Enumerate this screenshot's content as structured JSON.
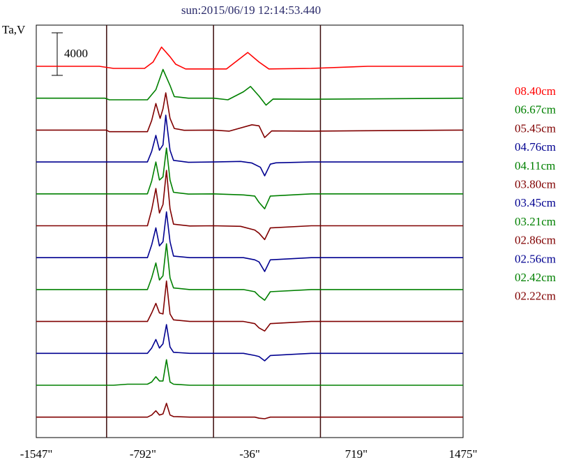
{
  "chart_data": {
    "type": "line",
    "title": "sun:2015/06/19 12:14:53.440",
    "ylabel": "Ta,V",
    "xlabel": "",
    "xlim": [
      -1547,
      1475
    ],
    "x_ticks": [
      {
        "value": -1547,
        "label": "-1547\""
      },
      {
        "value": -792,
        "label": "-792\""
      },
      {
        "value": -36,
        "label": "-36\""
      },
      {
        "value": 719,
        "label": "719\""
      },
      {
        "value": 1475,
        "label": "1475\""
      }
    ],
    "vertical_markers": [
      -1049,
      -292,
      465
    ],
    "scale_bar": {
      "label": "4000",
      "value": 4000
    },
    "grid": false,
    "legend_position": "right",
    "series": [
      {
        "name": "08.40cm",
        "color": "#ff0000",
        "baseline": 0,
        "values": [
          [
            -1547,
            0
          ],
          [
            -1100,
            0
          ],
          [
            -1000,
            -200
          ],
          [
            -780,
            -200
          ],
          [
            -720,
            400
          ],
          [
            -660,
            1800
          ],
          [
            -600,
            900
          ],
          [
            -560,
            200
          ],
          [
            -490,
            -250
          ],
          [
            -400,
            -250
          ],
          [
            -300,
            -250
          ],
          [
            -200,
            -250
          ],
          [
            -50,
            1300
          ],
          [
            30,
            400
          ],
          [
            100,
            -250
          ],
          [
            400,
            -200
          ],
          [
            800,
            0
          ],
          [
            1475,
            0
          ]
        ]
      },
      {
        "name": "06.67cm",
        "color": "#008000",
        "baseline": 0,
        "values": [
          [
            -1547,
            0
          ],
          [
            -1060,
            0
          ],
          [
            -1030,
            -150
          ],
          [
            -760,
            -150
          ],
          [
            -700,
            800
          ],
          [
            -650,
            2700
          ],
          [
            -600,
            1200
          ],
          [
            -570,
            150
          ],
          [
            -470,
            0
          ],
          [
            -290,
            0
          ],
          [
            -190,
            -150
          ],
          [
            -80,
            600
          ],
          [
            -30,
            1100
          ],
          [
            30,
            200
          ],
          [
            80,
            -650
          ],
          [
            130,
            -80
          ],
          [
            400,
            -100
          ],
          [
            1475,
            0
          ]
        ]
      },
      {
        "name": "05.45cm",
        "color": "#800000",
        "baseline": 0,
        "values": [
          [
            -1547,
            0
          ],
          [
            -1050,
            0
          ],
          [
            -1030,
            -150
          ],
          [
            -760,
            -150
          ],
          [
            -730,
            900
          ],
          [
            -700,
            2500
          ],
          [
            -670,
            1100
          ],
          [
            -650,
            2000
          ],
          [
            -630,
            3500
          ],
          [
            -600,
            1100
          ],
          [
            -570,
            150
          ],
          [
            -500,
            -20
          ],
          [
            -290,
            0
          ],
          [
            -180,
            -100
          ],
          [
            -20,
            500
          ],
          [
            30,
            400
          ],
          [
            70,
            -700
          ],
          [
            120,
            -80
          ],
          [
            400,
            -100
          ],
          [
            1475,
            0
          ]
        ]
      },
      {
        "name": "04.76cm",
        "color": "#000090",
        "baseline": 0,
        "values": [
          [
            -1547,
            0
          ],
          [
            -760,
            0
          ],
          [
            -730,
            1000
          ],
          [
            -700,
            2500
          ],
          [
            -675,
            1100
          ],
          [
            -650,
            1600
          ],
          [
            -630,
            4400
          ],
          [
            -600,
            1100
          ],
          [
            -575,
            150
          ],
          [
            -470,
            -30
          ],
          [
            -290,
            0
          ],
          [
            -100,
            50
          ],
          [
            -20,
            -100
          ],
          [
            40,
            -500
          ],
          [
            70,
            -1300
          ],
          [
            110,
            -200
          ],
          [
            150,
            -80
          ],
          [
            400,
            0
          ],
          [
            1475,
            0
          ]
        ]
      },
      {
        "name": "04.11cm",
        "color": "#008000",
        "baseline": 0,
        "values": [
          [
            -1547,
            0
          ],
          [
            -760,
            0
          ],
          [
            -730,
            1200
          ],
          [
            -700,
            3000
          ],
          [
            -675,
            1300
          ],
          [
            -650,
            1600
          ],
          [
            -625,
            4300
          ],
          [
            -600,
            1300
          ],
          [
            -575,
            150
          ],
          [
            -470,
            -20
          ],
          [
            -290,
            0
          ],
          [
            -80,
            -100
          ],
          [
            0,
            -200
          ],
          [
            30,
            -800
          ],
          [
            70,
            -1400
          ],
          [
            110,
            -200
          ],
          [
            400,
            0
          ],
          [
            1475,
            0
          ]
        ]
      },
      {
        "name": "03.80cm",
        "color": "#800000",
        "baseline": 0,
        "values": [
          [
            -1547,
            0
          ],
          [
            -760,
            0
          ],
          [
            -730,
            1500
          ],
          [
            -700,
            3500
          ],
          [
            -675,
            1200
          ],
          [
            -650,
            2000
          ],
          [
            -625,
            5200
          ],
          [
            -600,
            1600
          ],
          [
            -575,
            150
          ],
          [
            -460,
            -20
          ],
          [
            -290,
            0
          ],
          [
            -100,
            -50
          ],
          [
            0,
            -400
          ],
          [
            30,
            -700
          ],
          [
            70,
            -1300
          ],
          [
            110,
            -200
          ],
          [
            400,
            0
          ],
          [
            1475,
            0
          ]
        ]
      },
      {
        "name": "03.45cm",
        "color": "#000090",
        "baseline": 0,
        "values": [
          [
            -1547,
            0
          ],
          [
            -760,
            0
          ],
          [
            -730,
            1200
          ],
          [
            -700,
            2800
          ],
          [
            -675,
            1100
          ],
          [
            -650,
            1500
          ],
          [
            -625,
            4300
          ],
          [
            -600,
            1500
          ],
          [
            -575,
            150
          ],
          [
            -460,
            0
          ],
          [
            -290,
            0
          ],
          [
            -80,
            0
          ],
          [
            0,
            -200
          ],
          [
            30,
            -400
          ],
          [
            70,
            -1300
          ],
          [
            110,
            -200
          ],
          [
            400,
            0
          ],
          [
            1475,
            0
          ]
        ]
      },
      {
        "name": "03.21cm",
        "color": "#008000",
        "baseline": 0,
        "values": [
          [
            -1547,
            0
          ],
          [
            -760,
            0
          ],
          [
            -730,
            1100
          ],
          [
            -700,
            2500
          ],
          [
            -675,
            900
          ],
          [
            -650,
            1300
          ],
          [
            -625,
            4300
          ],
          [
            -600,
            1100
          ],
          [
            -575,
            150
          ],
          [
            -460,
            0
          ],
          [
            -290,
            0
          ],
          [
            -80,
            0
          ],
          [
            0,
            -200
          ],
          [
            30,
            -600
          ],
          [
            70,
            -1000
          ],
          [
            110,
            -200
          ],
          [
            400,
            0
          ],
          [
            1475,
            0
          ]
        ]
      },
      {
        "name": "02.86cm",
        "color": "#800000",
        "baseline": 0,
        "values": [
          [
            -1547,
            0
          ],
          [
            -760,
            0
          ],
          [
            -730,
            800
          ],
          [
            -700,
            1700
          ],
          [
            -675,
            800
          ],
          [
            -650,
            700
          ],
          [
            -625,
            3800
          ],
          [
            -600,
            700
          ],
          [
            -575,
            150
          ],
          [
            -460,
            0
          ],
          [
            -290,
            0
          ],
          [
            -80,
            0
          ],
          [
            0,
            -200
          ],
          [
            30,
            -600
          ],
          [
            70,
            -900
          ],
          [
            110,
            -200
          ],
          [
            400,
            0
          ],
          [
            1475,
            0
          ]
        ]
      },
      {
        "name": "02.56cm",
        "color": "#000090",
        "baseline": 0,
        "values": [
          [
            -1547,
            0
          ],
          [
            -760,
            0
          ],
          [
            -730,
            500
          ],
          [
            -700,
            1300
          ],
          [
            -675,
            500
          ],
          [
            -650,
            900
          ],
          [
            -625,
            2700
          ],
          [
            -600,
            600
          ],
          [
            -575,
            100
          ],
          [
            -460,
            0
          ],
          [
            -290,
            0
          ],
          [
            -80,
            0
          ],
          [
            0,
            -200
          ],
          [
            30,
            -300
          ],
          [
            70,
            -700
          ],
          [
            110,
            -200
          ],
          [
            400,
            0
          ],
          [
            1475,
            0
          ]
        ]
      },
      {
        "name": "02.42cm",
        "color": "#008000",
        "baseline": 0,
        "values": [
          [
            -1547,
            0
          ],
          [
            -1000,
            0
          ],
          [
            -900,
            100
          ],
          [
            -760,
            100
          ],
          [
            -730,
            300
          ],
          [
            -700,
            800
          ],
          [
            -675,
            400
          ],
          [
            -650,
            400
          ],
          [
            -625,
            2400
          ],
          [
            -600,
            300
          ],
          [
            -575,
            100
          ],
          [
            -460,
            0
          ],
          [
            -290,
            0
          ],
          [
            1475,
            0
          ]
        ]
      },
      {
        "name": "02.22cm",
        "color": "#800000",
        "baseline": 0,
        "values": [
          [
            -1547,
            0
          ],
          [
            -760,
            0
          ],
          [
            -730,
            200
          ],
          [
            -700,
            600
          ],
          [
            -675,
            200
          ],
          [
            -650,
            300
          ],
          [
            -625,
            1300
          ],
          [
            -600,
            200
          ],
          [
            -575,
            50
          ],
          [
            -460,
            0
          ],
          [
            -290,
            0
          ],
          [
            0,
            0
          ],
          [
            30,
            -100
          ],
          [
            70,
            -150
          ],
          [
            110,
            0
          ],
          [
            400,
            0
          ],
          [
            1475,
            0
          ]
        ]
      }
    ]
  },
  "colors": {
    "frame": "#000000",
    "marker_line": "#3a0a0a",
    "title": "#2a2a6a"
  }
}
